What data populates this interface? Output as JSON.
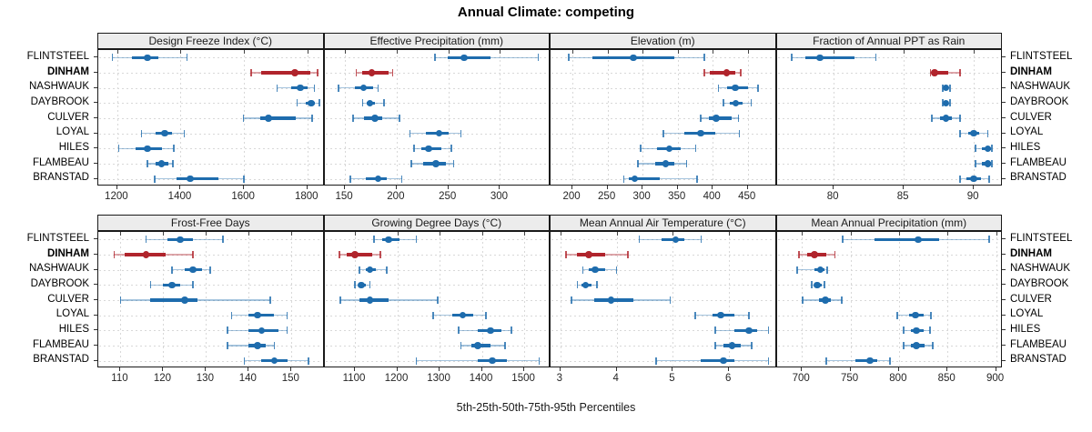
{
  "title": "Annual Climate: competing",
  "caption": "5th-25th-50th-75th-95th Percentiles",
  "colors": {
    "series": "#1e6cad",
    "series_light": "rgba(30,108,173,0.40)",
    "series_cap": "rgba(30,108,173,0.80)",
    "highlight": "#b0242c",
    "highlight_light": "rgba(176,36,44,0.40)",
    "highlight_cap": "rgba(176,36,44,0.80)",
    "grid": "#d8d8d8",
    "strip_bg": "#ececec",
    "border": "#1a1a1a"
  },
  "chart_data": {
    "type": "dotplot",
    "subtype": "percentile_interval_plot",
    "title": "Annual Climate: competing",
    "xlabel": "5th-25th-50th-75th-95th Percentiles",
    "percentiles": [
      5,
      25,
      50,
      75,
      95
    ],
    "legend_position": "none",
    "grid": true,
    "layout": {
      "rows": 2,
      "cols": 4
    },
    "categories": [
      "FLINTSTEEL",
      "DINHAM",
      "NASHWAUK",
      "DAYBROOK",
      "CULVER",
      "LOYAL",
      "HILES",
      "FLAMBEAU",
      "BRANSTAD"
    ],
    "highlight_category": "DINHAM",
    "panels": [
      {
        "title": "Design Freeze Index (°C)",
        "domain": [
          1143,
          1851
        ],
        "ticks": [
          1200,
          1400,
          1600,
          1800
        ],
        "values": [
          [
            1185,
            1245,
            1295,
            1330,
            1420
          ],
          [
            1622,
            1655,
            1760,
            1808,
            1832
          ],
          [
            1705,
            1748,
            1778,
            1800,
            1822
          ],
          [
            1768,
            1795,
            1812,
            1825,
            1838
          ],
          [
            1598,
            1650,
            1678,
            1762,
            1815
          ],
          [
            1276,
            1320,
            1350,
            1372,
            1412
          ],
          [
            1205,
            1258,
            1295,
            1340,
            1378
          ],
          [
            1295,
            1322,
            1340,
            1360,
            1376
          ],
          [
            1318,
            1388,
            1430,
            1518,
            1600
          ]
        ]
      },
      {
        "title": "Effective Precipitation (mm)",
        "domain": [
          131,
          348
        ],
        "ticks": [
          150,
          200,
          250,
          300
        ],
        "values": [
          [
            237,
            249,
            265,
            291,
            337
          ],
          [
            161,
            167,
            176,
            192,
            196
          ],
          [
            144,
            160,
            168,
            177,
            182
          ],
          [
            167,
            171,
            174,
            179,
            188
          ],
          [
            158,
            168,
            179,
            186,
            203
          ],
          [
            213,
            228,
            241,
            250,
            262
          ],
          [
            217,
            224,
            231,
            243,
            253
          ],
          [
            214,
            226,
            238,
            248,
            255
          ],
          [
            155,
            170,
            182,
            190,
            205
          ]
        ]
      },
      {
        "title": "Elevation (m)",
        "domain": [
          170,
          490
        ],
        "ticks": [
          200,
          250,
          300,
          350,
          400,
          450
        ],
        "values": [
          [
            195,
            228,
            287,
            345,
            388
          ],
          [
            388,
            396,
            420,
            432,
            440
          ],
          [
            408,
            420,
            432,
            450,
            465
          ],
          [
            415,
            425,
            433,
            443,
            455
          ],
          [
            383,
            394,
            405,
            427,
            437
          ],
          [
            330,
            360,
            383,
            404,
            438
          ],
          [
            297,
            320,
            338,
            354,
            376
          ],
          [
            293,
            318,
            333,
            345,
            363
          ],
          [
            273,
            280,
            289,
            324,
            378
          ]
        ]
      },
      {
        "title": "Fraction of Annual PPT as Rain",
        "domain": [
          76,
          92
        ],
        "ticks": [
          80,
          85,
          90
        ],
        "values": [
          [
            77,
            78,
            79,
            81.5,
            83
          ],
          [
            86.9,
            87.1,
            87.2,
            88.2,
            89
          ],
          [
            87.8,
            87.9,
            88,
            88.1,
            88.3
          ],
          [
            87.8,
            87.9,
            88,
            88.1,
            88.3
          ],
          [
            87,
            87.6,
            88,
            88.4,
            89
          ],
          [
            89,
            89.6,
            90,
            90.4,
            91
          ],
          [
            90.1,
            90.6,
            91,
            91.2,
            91.3
          ],
          [
            90.1,
            90.6,
            91,
            91.2,
            91.3
          ],
          [
            89,
            89.5,
            90,
            90.5,
            91.1
          ]
        ]
      },
      {
        "title": "Frost-Free Days",
        "domain": [
          105,
          157.5
        ],
        "ticks": [
          110,
          120,
          130,
          140,
          150
        ],
        "values": [
          [
            116,
            121,
            124,
            127,
            134
          ],
          [
            108.5,
            111,
            116,
            120.5,
            127
          ],
          [
            122,
            125,
            127,
            129,
            131
          ],
          [
            117,
            120,
            122,
            124,
            127
          ],
          [
            110,
            117,
            125,
            128,
            145
          ],
          [
            136,
            140,
            142,
            146,
            149
          ],
          [
            135,
            140,
            143,
            147,
            149
          ],
          [
            135,
            140,
            142,
            144,
            146
          ],
          [
            139,
            143,
            146,
            149,
            154
          ]
        ]
      },
      {
        "title": "Growing Degree Days (°C)",
        "domain": [
          1030,
          1560
        ],
        "ticks": [
          1100,
          1200,
          1300,
          1400,
          1500
        ],
        "values": [
          [
            1145,
            1165,
            1180,
            1205,
            1245
          ],
          [
            1063,
            1080,
            1100,
            1140,
            1160
          ],
          [
            1110,
            1125,
            1135,
            1150,
            1175
          ],
          [
            1100,
            1108,
            1115,
            1125,
            1135
          ],
          [
            1065,
            1110,
            1135,
            1180,
            1295
          ],
          [
            1285,
            1330,
            1355,
            1380,
            1410
          ],
          [
            1345,
            1390,
            1420,
            1445,
            1470
          ],
          [
            1350,
            1375,
            1390,
            1420,
            1455
          ],
          [
            1245,
            1390,
            1425,
            1460,
            1535
          ]
        ]
      },
      {
        "title": "Mean Annual Air Temperature (°C)",
        "domain": [
          2.84,
          6.83
        ],
        "ticks": [
          3,
          4,
          5,
          6
        ],
        "values": [
          [
            4.4,
            4.8,
            5.05,
            5.2,
            5.5
          ],
          [
            3.1,
            3.3,
            3.5,
            3.8,
            4.2
          ],
          [
            3.4,
            3.5,
            3.62,
            3.8,
            4.0
          ],
          [
            3.3,
            3.38,
            3.45,
            3.55,
            3.65
          ],
          [
            3.2,
            3.6,
            3.9,
            4.3,
            4.95
          ],
          [
            5.4,
            5.7,
            5.85,
            6.1,
            6.35
          ],
          [
            5.75,
            6.1,
            6.35,
            6.5,
            6.7
          ],
          [
            5.75,
            5.9,
            6.05,
            6.2,
            6.4
          ],
          [
            4.7,
            5.5,
            5.9,
            6.1,
            6.7
          ]
        ]
      },
      {
        "title": "Mean Annual Precipitation (mm)",
        "domain": [
          675,
          906
        ],
        "ticks": [
          700,
          750,
          800,
          850,
          900
        ],
        "values": [
          [
            742,
            775,
            820,
            841,
            893
          ],
          [
            697,
            705,
            713,
            725,
            734
          ],
          [
            695,
            713,
            719,
            723,
            726
          ],
          [
            710,
            713,
            716,
            720,
            723
          ],
          [
            701,
            718,
            724,
            730,
            741
          ],
          [
            798,
            810,
            817,
            825,
            833
          ],
          [
            805,
            812,
            818,
            825,
            832
          ],
          [
            805,
            812,
            818,
            826,
            835
          ],
          [
            725,
            755,
            770,
            778,
            791
          ]
        ]
      }
    ]
  }
}
